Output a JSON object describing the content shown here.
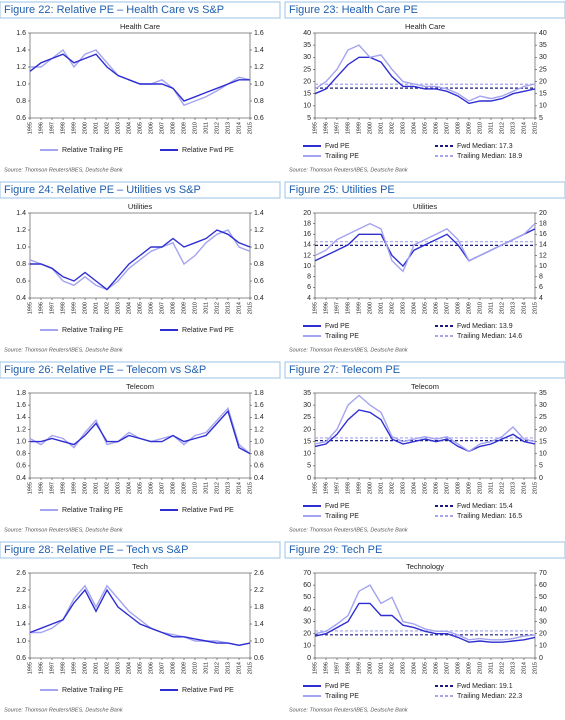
{
  "panels": [
    {
      "title": "Figure 22: Relative PE – Health Care vs S&P",
      "source": "Source: Thomson Reuters/IBES, Deutsche Bank",
      "chart_data": {
        "type": "line",
        "subtitle": "Health Care",
        "x": [
          1995,
          1996,
          1997,
          1998,
          1999,
          2000,
          2001,
          2002,
          2003,
          2004,
          2005,
          2006,
          2007,
          2008,
          2009,
          2010,
          2011,
          2012,
          2013,
          2014,
          2015
        ],
        "ylim": [
          0.6,
          1.6
        ],
        "yticks": [
          0.6,
          0.8,
          {
            "value": 1,
            "label": "1.0"
          },
          1.2,
          1.4,
          1.6
        ],
        "series": [
          {
            "name": "Relative Trailing PE",
            "color": "#a4a4f0",
            "values": [
              1.2,
              1.2,
              1.3,
              1.4,
              1.2,
              1.35,
              1.4,
              1.25,
              1.1,
              1.05,
              1.0,
              1.0,
              1.05,
              0.95,
              0.75,
              0.8,
              0.85,
              0.92,
              1.0,
              1.08,
              1.05
            ]
          },
          {
            "name": "Relative Fwd PE",
            "color": "#2e2ed2",
            "values": [
              1.15,
              1.25,
              1.3,
              1.35,
              1.25,
              1.3,
              1.35,
              1.2,
              1.1,
              1.05,
              1.0,
              1.0,
              1.0,
              0.95,
              0.8,
              0.85,
              0.9,
              0.95,
              1.0,
              1.05,
              1.05
            ]
          }
        ]
      }
    },
    {
      "title": "Figure 23: Health Care PE",
      "source": "Source: Thomson Reuters/IBES, Deutsche Bank",
      "chart_data": {
        "type": "line",
        "subtitle": "Health Care",
        "x": [
          1995,
          1996,
          1997,
          1998,
          1999,
          2000,
          2001,
          2002,
          2003,
          2004,
          2005,
          2006,
          2007,
          2008,
          2009,
          2010,
          2011,
          2012,
          2013,
          2014,
          2015
        ],
        "ylim": [
          5,
          40
        ],
        "yticks": [
          5,
          10,
          15,
          20,
          25,
          30,
          35,
          40
        ],
        "series": [
          {
            "name": "Fwd PE",
            "color": "#2e2ed2",
            "values": [
              15,
              17,
              22,
              27,
              30,
              30,
              28,
              22,
              18,
              18,
              17,
              17,
              16,
              14,
              11,
              12,
              12,
              13,
              15,
              16,
              17
            ]
          },
          {
            "name": "Trailing PE",
            "color": "#a4a4f0",
            "values": [
              17,
              20,
              25,
              33,
              35,
              30,
              31,
              25,
              20,
              19,
              18,
              18,
              17,
              15,
              12,
              14,
              13,
              14,
              16,
              18,
              19
            ]
          }
        ],
        "medians": [
          {
            "name": "Fwd Median: 17.3",
            "value": 17.3,
            "color": "#1a1a80"
          },
          {
            "name": "Trailing Median: 18.9",
            "value": 18.9,
            "color": "#a4a4f0"
          }
        ]
      }
    },
    {
      "title": "Figure 24: Relative PE – Utilities vs S&P",
      "source": "Source: Thomson Reuters/IBES, Deutsche Bank",
      "chart_data": {
        "type": "line",
        "subtitle": "Utilities",
        "x": [
          1995,
          1996,
          1997,
          1998,
          1999,
          2000,
          2001,
          2002,
          2003,
          2004,
          2005,
          2006,
          2007,
          2008,
          2009,
          2010,
          2011,
          2012,
          2013,
          2014,
          2015
        ],
        "ylim": [
          0.4,
          1.4
        ],
        "yticks": [
          0.4,
          0.6,
          0.8,
          {
            "value": 1,
            "label": "1.0"
          },
          1.2,
          1.4
        ],
        "series": [
          {
            "name": "Relative Trailing PE",
            "color": "#a4a4f0",
            "values": [
              0.85,
              0.8,
              0.75,
              0.6,
              0.55,
              0.65,
              0.55,
              0.5,
              0.6,
              0.75,
              0.85,
              0.95,
              1.0,
              1.05,
              0.8,
              0.9,
              1.05,
              1.15,
              1.2,
              1.0,
              0.95
            ]
          },
          {
            "name": "Relative Fwd PE",
            "color": "#2e2ed2",
            "values": [
              0.8,
              0.8,
              0.75,
              0.65,
              0.6,
              0.7,
              0.6,
              0.5,
              0.65,
              0.8,
              0.9,
              1.0,
              1.0,
              1.1,
              1.0,
              1.05,
              1.1,
              1.2,
              1.15,
              1.05,
              1.0
            ]
          }
        ]
      }
    },
    {
      "title": "Figure 25: Utilities PE",
      "source": "Source: Thomson Reuters/IBES, Deutsche Bank",
      "chart_data": {
        "type": "line",
        "subtitle": "Utilities",
        "x": [
          1995,
          1996,
          1997,
          1998,
          1999,
          2000,
          2001,
          2002,
          2003,
          2004,
          2005,
          2006,
          2007,
          2008,
          2009,
          2010,
          2011,
          2012,
          2013,
          2014,
          2015
        ],
        "ylim": [
          4,
          20
        ],
        "yticks": [
          4,
          6,
          8,
          10,
          12,
          14,
          16,
          18,
          20
        ],
        "series": [
          {
            "name": "Fwd PE",
            "color": "#2e2ed2",
            "values": [
              11,
              12,
              13,
              14,
              16,
              16,
              16,
              12,
              10,
              13,
              14,
              15,
              16,
              14,
              11,
              12,
              13,
              14,
              15,
              16,
              17
            ]
          },
          {
            "name": "Trailing PE",
            "color": "#a4a4f0",
            "values": [
              12,
              13,
              15,
              16,
              17,
              18,
              17,
              11,
              9,
              14,
              15,
              16,
              17,
              15,
              11,
              12,
              13,
              14,
              15,
              16,
              18
            ]
          }
        ],
        "medians": [
          {
            "name": "Fwd Median: 13.9",
            "value": 13.9,
            "color": "#1a1a80"
          },
          {
            "name": "Trailing Median: 14.6",
            "value": 14.6,
            "color": "#a4a4f0"
          }
        ]
      }
    },
    {
      "title": "Figure 26: Relative PE – Telecom vs S&P",
      "source": "Source: Thomson Reuters/IBES, Deutsche Bank",
      "chart_data": {
        "type": "line",
        "subtitle": "Telecom",
        "x": [
          1995,
          1996,
          1997,
          1998,
          1999,
          2000,
          2001,
          2002,
          2003,
          2004,
          2005,
          2006,
          2007,
          2008,
          2009,
          2010,
          2011,
          2012,
          2013,
          2014,
          2015
        ],
        "ylim": [
          0.4,
          1.8
        ],
        "yticks": [
          0.4,
          0.6,
          0.8,
          {
            "value": 1,
            "label": "1.0"
          },
          1.2,
          1.4,
          1.6,
          1.8
        ],
        "series": [
          {
            "name": "Relative Trailing PE",
            "color": "#a4a4f0",
            "values": [
              1.05,
              0.95,
              1.1,
              1.05,
              0.9,
              1.15,
              1.35,
              0.95,
              1.0,
              1.15,
              1.05,
              1.0,
              1.05,
              1.1,
              0.95,
              1.1,
              1.15,
              1.35,
              1.55,
              0.95,
              0.8
            ]
          },
          {
            "name": "Relative Fwd PE",
            "color": "#2e2ed2",
            "values": [
              1.0,
              1.0,
              1.05,
              1.0,
              0.95,
              1.1,
              1.3,
              1.0,
              1.0,
              1.1,
              1.05,
              1.0,
              1.0,
              1.1,
              1.0,
              1.05,
              1.1,
              1.3,
              1.5,
              0.9,
              0.8
            ]
          }
        ]
      }
    },
    {
      "title": "Figure 27: Telecom PE",
      "source": "Source: Thomson Reuters/IBES, Deutsche Bank",
      "chart_data": {
        "type": "line",
        "subtitle": "Telecom",
        "x": [
          1995,
          1996,
          1997,
          1998,
          1999,
          2000,
          2001,
          2002,
          2003,
          2004,
          2005,
          2006,
          2007,
          2008,
          2009,
          2010,
          2011,
          2012,
          2013,
          2014,
          2015
        ],
        "ylim": [
          0,
          35
        ],
        "yticks": [
          0,
          5,
          10,
          15,
          20,
          25,
          30,
          35
        ],
        "series": [
          {
            "name": "Fwd PE",
            "color": "#2e2ed2",
            "values": [
              13,
              14,
              18,
              24,
              28,
              27,
              24,
              16,
              14,
              15,
              16,
              15,
              16,
              13,
              11,
              13,
              14,
              16,
              18,
              15,
              14
            ]
          },
          {
            "name": "Trailing PE",
            "color": "#a4a4f0",
            "values": [
              14,
              15,
              20,
              30,
              34,
              30,
              27,
              17,
              15,
              16,
              17,
              16,
              17,
              14,
              11,
              14,
              15,
              17,
              21,
              16,
              15
            ]
          }
        ],
        "medians": [
          {
            "name": "Fwd Median: 15.4",
            "value": 15.4,
            "color": "#1a1a80"
          },
          {
            "name": "Trailing Median: 16.5",
            "value": 16.5,
            "color": "#a4a4f0"
          }
        ]
      }
    },
    {
      "title": "Figure 28: Relative PE – Tech vs S&P",
      "source": "Source: Thomson Reuters/IBES, Deutsche Bank",
      "chart_data": {
        "type": "line",
        "subtitle": "Tech",
        "x": [
          1995,
          1996,
          1997,
          1998,
          1999,
          2000,
          2001,
          2002,
          2003,
          2004,
          2005,
          2006,
          2007,
          2008,
          2009,
          2010,
          2011,
          2012,
          2013,
          2014,
          2015
        ],
        "ylim": [
          0.6,
          2.6
        ],
        "yticks": [
          0.6,
          {
            "value": 1,
            "label": "1.0"
          },
          1.4,
          1.8,
          2.2,
          2.6
        ],
        "series": [
          {
            "name": "Relative Trailing PE",
            "color": "#a4a4f0",
            "values": [
              1.2,
              1.2,
              1.3,
              1.5,
              2.0,
              2.3,
              1.8,
              2.3,
              2.0,
              1.7,
              1.5,
              1.3,
              1.2,
              1.15,
              1.1,
              1.0,
              1.0,
              1.0,
              0.95,
              0.9,
              0.95
            ]
          },
          {
            "name": "Relative Fwd PE",
            "color": "#2e2ed2",
            "values": [
              1.2,
              1.3,
              1.4,
              1.5,
              1.9,
              2.2,
              1.7,
              2.2,
              1.8,
              1.6,
              1.4,
              1.3,
              1.2,
              1.1,
              1.1,
              1.05,
              1.0,
              0.95,
              0.95,
              0.9,
              0.95
            ]
          }
        ]
      }
    },
    {
      "title": "Figure 29: Tech PE",
      "source": "Source: Thomson Reuters/IBES, Deutsche Bank",
      "chart_data": {
        "type": "line",
        "subtitle": "Technology",
        "x": [
          1995,
          1996,
          1997,
          1998,
          1999,
          2000,
          2001,
          2002,
          2003,
          2004,
          2005,
          2006,
          2007,
          2008,
          2009,
          2010,
          2011,
          2012,
          2013,
          2014,
          2015
        ],
        "ylim": [
          0,
          70
        ],
        "yticks": [
          0,
          10,
          20,
          30,
          40,
          50,
          60,
          70
        ],
        "series": [
          {
            "name": "Fwd PE",
            "color": "#2e2ed2",
            "values": [
              18,
              20,
              25,
              30,
              45,
              45,
              35,
              35,
              27,
              25,
              22,
              20,
              20,
              17,
              13,
              14,
              13,
              13,
              14,
              15,
              17
            ]
          },
          {
            "name": "Trailing PE",
            "color": "#a4a4f0",
            "values": [
              20,
              22,
              28,
              35,
              55,
              60,
              45,
              50,
              30,
              28,
              24,
              22,
              22,
              19,
              15,
              16,
              15,
              15,
              16,
              18,
              19
            ]
          }
        ],
        "medians": [
          {
            "name": "Fwd Median: 19.1",
            "value": 19.1,
            "color": "#1a1a80"
          },
          {
            "name": "Trailing Median: 22.3",
            "value": 22.3,
            "color": "#a4a4f0"
          }
        ]
      }
    }
  ]
}
